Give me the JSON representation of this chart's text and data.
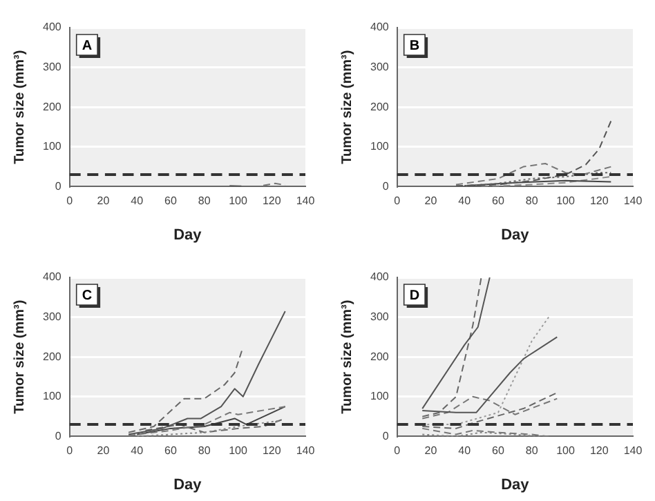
{
  "chart_data": [
    {
      "type": "line",
      "xlabel": "Day",
      "ylabel": "Tumor size (mm³)",
      "annotations": [
        "A"
      ],
      "xlim": [
        0,
        140
      ],
      "xticks": [
        0,
        20,
        40,
        60,
        80,
        100,
        120,
        140
      ],
      "ylim": [
        0,
        400
      ],
      "yticks": [
        0,
        100,
        200,
        300,
        400
      ],
      "grid": "y",
      "legend": false,
      "marker": "none",
      "ref_lines": [
        {
          "axis": "y",
          "value": 30,
          "color": "#333333",
          "line_style": "dashed"
        }
      ],
      "series": [
        {
          "color": "#555555",
          "line_style": "solid",
          "x": [
            95,
            102
          ],
          "values": [
            2,
            1
          ]
        },
        {
          "color": "#777777",
          "line_style": "dashed",
          "x": [
            115,
            122,
            128
          ],
          "values": [
            3,
            8,
            4
          ]
        }
      ]
    },
    {
      "type": "line",
      "xlabel": "Day",
      "ylabel": "Tumor size (mm³)",
      "annotations": [
        "B"
      ],
      "xlim": [
        0,
        140
      ],
      "xticks": [
        0,
        20,
        40,
        60,
        80,
        100,
        120,
        140
      ],
      "ylim": [
        0,
        400
      ],
      "yticks": [
        0,
        100,
        200,
        300,
        400
      ],
      "grid": "y",
      "legend": false,
      "marker": "none",
      "ref_lines": [
        {
          "axis": "y",
          "value": 30,
          "color": "#333333",
          "line_style": "dashed"
        }
      ],
      "series": [
        {
          "color": "#555555",
          "line_style": "dashed",
          "x": [
            35,
            60,
            80,
            100,
            112,
            120,
            127
          ],
          "values": [
            2,
            5,
            15,
            30,
            55,
            95,
            165
          ]
        },
        {
          "color": "#777777",
          "line_style": "dashed",
          "x": [
            35,
            60,
            75,
            88,
            100,
            110,
            127
          ],
          "values": [
            5,
            20,
            50,
            58,
            35,
            30,
            50
          ]
        },
        {
          "color": "#666666",
          "line_style": "dotted",
          "x": [
            35,
            60,
            80,
            100,
            120,
            127
          ],
          "values": [
            0,
            8,
            20,
            25,
            35,
            35
          ]
        },
        {
          "color": "#444444",
          "line_style": "solid",
          "x": [
            40,
            70,
            100,
            127
          ],
          "values": [
            2,
            10,
            15,
            12
          ]
        },
        {
          "color": "#888888",
          "line_style": "dashed",
          "x": [
            50,
            80,
            100,
            127
          ],
          "values": [
            0,
            5,
            10,
            25
          ]
        }
      ]
    },
    {
      "type": "line",
      "xlabel": "Day",
      "ylabel": "Tumor size (mm³)",
      "annotations": [
        "C"
      ],
      "xlim": [
        0,
        140
      ],
      "xticks": [
        0,
        20,
        40,
        60,
        80,
        100,
        120,
        140
      ],
      "ylim": [
        0,
        400
      ],
      "yticks": [
        0,
        100,
        200,
        300,
        400
      ],
      "grid": "y",
      "legend": false,
      "marker": "none",
      "ref_lines": [
        {
          "axis": "y",
          "value": 30,
          "color": "#333333",
          "line_style": "dashed"
        }
      ],
      "series": [
        {
          "color": "#666666",
          "line_style": "dashed",
          "x": [
            35,
            50,
            68,
            80,
            92,
            98,
            103
          ],
          "values": [
            10,
            25,
            95,
            95,
            130,
            160,
            225
          ]
        },
        {
          "color": "#555555",
          "line_style": "solid",
          "x": [
            35,
            55,
            70,
            78,
            90,
            98,
            103,
            112,
            128
          ],
          "values": [
            5,
            20,
            45,
            45,
            75,
            120,
            100,
            180,
            315
          ]
        },
        {
          "color": "#777777",
          "line_style": "dashed",
          "x": [
            35,
            60,
            80,
            95,
            100,
            128
          ],
          "values": [
            2,
            15,
            30,
            60,
            55,
            75
          ]
        },
        {
          "color": "#444444",
          "line_style": "solid",
          "x": [
            40,
            60,
            80,
            98,
            105,
            128
          ],
          "values": [
            5,
            20,
            25,
            45,
            30,
            75
          ]
        },
        {
          "color": "#888888",
          "line_style": "dotted",
          "x": [
            40,
            60,
            80,
            100,
            125
          ],
          "values": [
            0,
            5,
            10,
            25,
            40
          ]
        },
        {
          "color": "#666666",
          "line_style": "dashed",
          "x": [
            45,
            65,
            80,
            100,
            115,
            128
          ],
          "values": [
            15,
            30,
            10,
            20,
            25,
            45
          ]
        }
      ]
    },
    {
      "type": "line",
      "xlabel": "Day",
      "ylabel": "Tumor size (mm³)",
      "annotations": [
        "D"
      ],
      "xlim": [
        0,
        140
      ],
      "xticks": [
        0,
        20,
        40,
        60,
        80,
        100,
        120,
        140
      ],
      "ylim": [
        0,
        400
      ],
      "yticks": [
        0,
        100,
        200,
        300,
        400
      ],
      "grid": "y",
      "legend": false,
      "marker": "none",
      "ref_lines": [
        {
          "axis": "y",
          "value": 30,
          "color": "#333333",
          "line_style": "dashed"
        }
      ],
      "series": [
        {
          "color": "#555555",
          "line_style": "solid",
          "x": [
            15,
            40,
            48,
            55
          ],
          "values": [
            70,
            230,
            275,
            400
          ]
        },
        {
          "color": "#666666",
          "line_style": "dashed",
          "x": [
            15,
            25,
            35,
            45,
            50
          ],
          "values": [
            50,
            60,
            100,
            280,
            400
          ]
        },
        {
          "color": "#555555",
          "line_style": "solid",
          "x": [
            15,
            35,
            47,
            55,
            67,
            75,
            95
          ],
          "values": [
            65,
            60,
            60,
            100,
            160,
            195,
            250
          ]
        },
        {
          "color": "#777777",
          "line_style": "dashed",
          "x": [
            15,
            30,
            45,
            55,
            70,
            95
          ],
          "values": [
            45,
            60,
            100,
            90,
            55,
            95
          ]
        },
        {
          "color": "#999999",
          "line_style": "dotted",
          "x": [
            15,
            35,
            60,
            80,
            90
          ],
          "values": [
            30,
            30,
            60,
            240,
            300
          ]
        },
        {
          "color": "#666666",
          "line_style": "dashed",
          "x": [
            15,
            35,
            50,
            75,
            95
          ],
          "values": [
            25,
            20,
            40,
            70,
            110
          ]
        },
        {
          "color": "#777777",
          "line_style": "dashed",
          "x": [
            15,
            35,
            45,
            60,
            80,
            90
          ],
          "values": [
            20,
            5,
            15,
            10,
            5,
            0
          ]
        },
        {
          "color": "#888888",
          "line_style": "dotted",
          "x": [
            15,
            35,
            50,
            70,
            85
          ],
          "values": [
            5,
            0,
            10,
            5,
            0
          ]
        }
      ]
    }
  ]
}
